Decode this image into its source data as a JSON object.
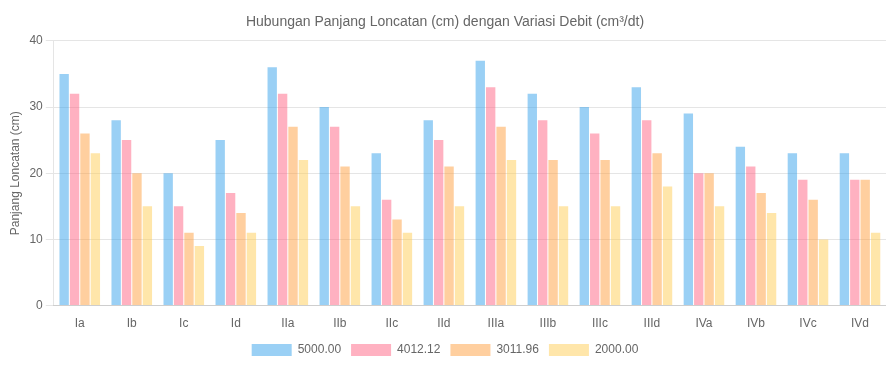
{
  "chart_data": {
    "type": "bar",
    "title": "Hubungan Panjang Loncatan (cm) dengan Variasi Debit (cm³/dt)",
    "ylabel": "Panjang Loncatan (cm)",
    "categories": [
      "Ia",
      "Ib",
      "Ic",
      "Id",
      "IIa",
      "IIb",
      "IIc",
      "IId",
      "IIIa",
      "IIIb",
      "IIIc",
      "IIId",
      "IVa",
      "IVb",
      "IVc",
      "IVd"
    ],
    "series": [
      {
        "name": "5000.00",
        "values": [
          35,
          28,
          20,
          25,
          36,
          30,
          23,
          28,
          37,
          32,
          30,
          33,
          29,
          24,
          23,
          23
        ]
      },
      {
        "name": "4012.12",
        "values": [
          32,
          25,
          15,
          17,
          32,
          27,
          16,
          25,
          33,
          28,
          26,
          28,
          20,
          21,
          19,
          19
        ]
      },
      {
        "name": "3011.96",
        "values": [
          26,
          20,
          11,
          14,
          27,
          21,
          13,
          21,
          27,
          22,
          22,
          23,
          20,
          17,
          16,
          19
        ]
      },
      {
        "name": "2000.00",
        "values": [
          23,
          15,
          9,
          11,
          22,
          15,
          11,
          15,
          22,
          15,
          15,
          18,
          15,
          14,
          10,
          11
        ]
      }
    ],
    "ylim": [
      0,
      40
    ],
    "yticks": [
      0,
      10,
      20,
      30,
      40
    ],
    "grid": true,
    "legend": "bottom"
  }
}
